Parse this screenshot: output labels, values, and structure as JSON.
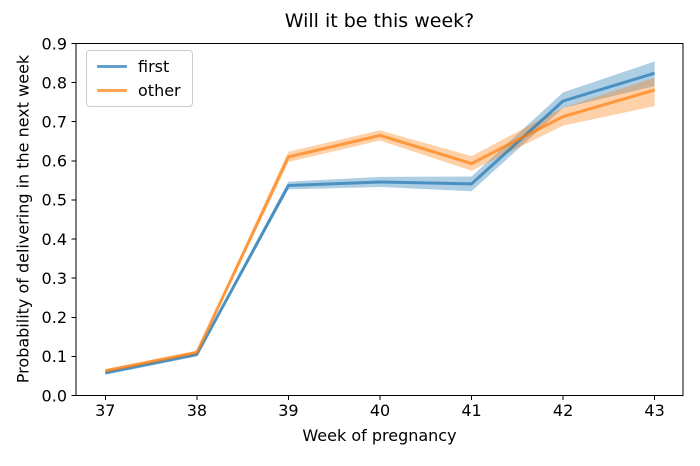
{
  "chart_data": {
    "type": "line",
    "title": "Will it be this week?",
    "xlabel": "Week of pregnancy",
    "ylabel": "Probability of delivering in the next week",
    "x": [
      37,
      38,
      39,
      40,
      41,
      42,
      43
    ],
    "series": [
      {
        "name": "first",
        "color": "#1f77b4",
        "values": [
          0.058,
          0.105,
          0.537,
          0.546,
          0.541,
          0.753,
          0.824
        ],
        "band_lower": [
          0.053,
          0.1,
          0.527,
          0.533,
          0.522,
          0.735,
          0.791
        ],
        "band_upper": [
          0.063,
          0.11,
          0.547,
          0.559,
          0.56,
          0.775,
          0.854
        ]
      },
      {
        "name": "other",
        "color": "#ff7f0e",
        "values": [
          0.063,
          0.11,
          0.61,
          0.665,
          0.593,
          0.713,
          0.781
        ],
        "band_lower": [
          0.058,
          0.105,
          0.597,
          0.652,
          0.575,
          0.69,
          0.74
        ],
        "band_upper": [
          0.068,
          0.115,
          0.623,
          0.678,
          0.612,
          0.736,
          0.812
        ]
      }
    ],
    "xlim": [
      36.68,
      43.31
    ],
    "ylim": [
      0.0,
      0.9
    ],
    "xticks": [
      "37",
      "38",
      "39",
      "40",
      "41",
      "42",
      "43"
    ],
    "yticks": [
      "0.0",
      "0.1",
      "0.2",
      "0.3",
      "0.4",
      "0.5",
      "0.6",
      "0.7",
      "0.8",
      "0.9"
    ],
    "grid": false,
    "legend_position": "upper left",
    "line_alpha": 0.7,
    "band_alpha": 0.36,
    "line_width": 3,
    "axis_color": "#000000",
    "background_color": "#ffffff"
  }
}
